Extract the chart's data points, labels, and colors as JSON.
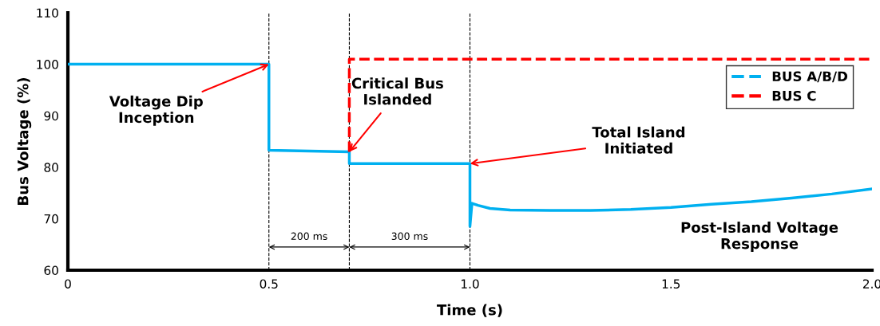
{
  "chart_data": {
    "type": "line",
    "xlabel": "Time (s)",
    "ylabel": "Bus Voltage (%)",
    "xlim": [
      0,
      2.0
    ],
    "xticks": [
      0,
      0.5,
      {
        "value": 1.0,
        "label": "1.0"
      },
      1.5,
      {
        "value": 2.0,
        "label": "2.0"
      }
    ],
    "ylim": [
      60,
      110
    ],
    "yticks": [
      60,
      70,
      80,
      90,
      100,
      110
    ],
    "grid": false,
    "legend": "top right",
    "series": [
      {
        "name": "BUS A/B/D",
        "color": "#00b0f0",
        "line_style": "solid",
        "x": [
          0,
          0.5,
          0.5,
          0.7,
          0.7,
          1.0,
          1.0,
          1.005,
          1.02,
          1.05,
          1.1,
          1.2,
          1.3,
          1.4,
          1.5,
          1.6,
          1.7,
          1.8,
          1.9,
          2.0
        ],
        "values": [
          100,
          100,
          83.3,
          83.0,
          80.7,
          80.7,
          68.5,
          73,
          72.6,
          72.0,
          71.7,
          71.6,
          71.6,
          71.8,
          72.2,
          72.8,
          73.3,
          74,
          74.8,
          75.8
        ]
      },
      {
        "name": "BUS C",
        "color": "#ff0000",
        "line_style": "dashed",
        "x": [
          0.7,
          0.7,
          2.0
        ],
        "values": [
          83.0,
          101,
          101
        ]
      }
    ],
    "ref_lines": [
      {
        "axis": "x",
        "value": 0.5,
        "color": "#000000",
        "line_style": "dashed"
      },
      {
        "axis": "x",
        "value": 0.7,
        "color": "#000000",
        "line_style": "dashed"
      },
      {
        "axis": "x",
        "value": 1.0,
        "color": "#000000",
        "line_style": "dashed"
      }
    ],
    "annotations": [
      {
        "text": "Voltage Dip\nInception",
        "x": 0.5,
        "y": 100
      },
      {
        "text": "Critical Bus\nIslanded",
        "x": 0.7,
        "y": 83
      },
      {
        "text": "Total Island\nInitiated",
        "x": 1.0,
        "y": 80.7
      },
      "Post-Island Voltage\nResponse",
      "200 ms",
      "300 ms"
    ]
  }
}
